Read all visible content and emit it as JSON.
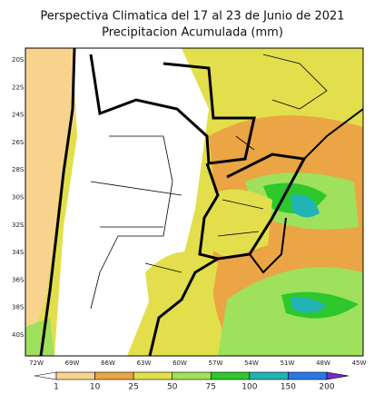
{
  "map": {
    "title": "Perspectiva Climatica del 17 al 23 de Junio de 2021",
    "subtitle": "Precipitacion Acumulada (mm)",
    "lat_labels": [
      "20S",
      "22S",
      "24S",
      "26S",
      "28S",
      "30S",
      "32S",
      "34S",
      "36S",
      "38S",
      "40S"
    ],
    "lon_labels": [
      "72W",
      "69W",
      "66W",
      "63W",
      "60W",
      "57W",
      "54W",
      "51W",
      "48W",
      "45W"
    ],
    "colorbar": {
      "levels": [
        1,
        10,
        25,
        50,
        75,
        100,
        150,
        200
      ],
      "colors": [
        "#ffffff",
        "#f7d38e",
        "#eba544",
        "#e3df4c",
        "#9fe05c",
        "#2cc82c",
        "#22b4b4",
        "#2a78e8",
        "#7a2ac8"
      ]
    }
  }
}
